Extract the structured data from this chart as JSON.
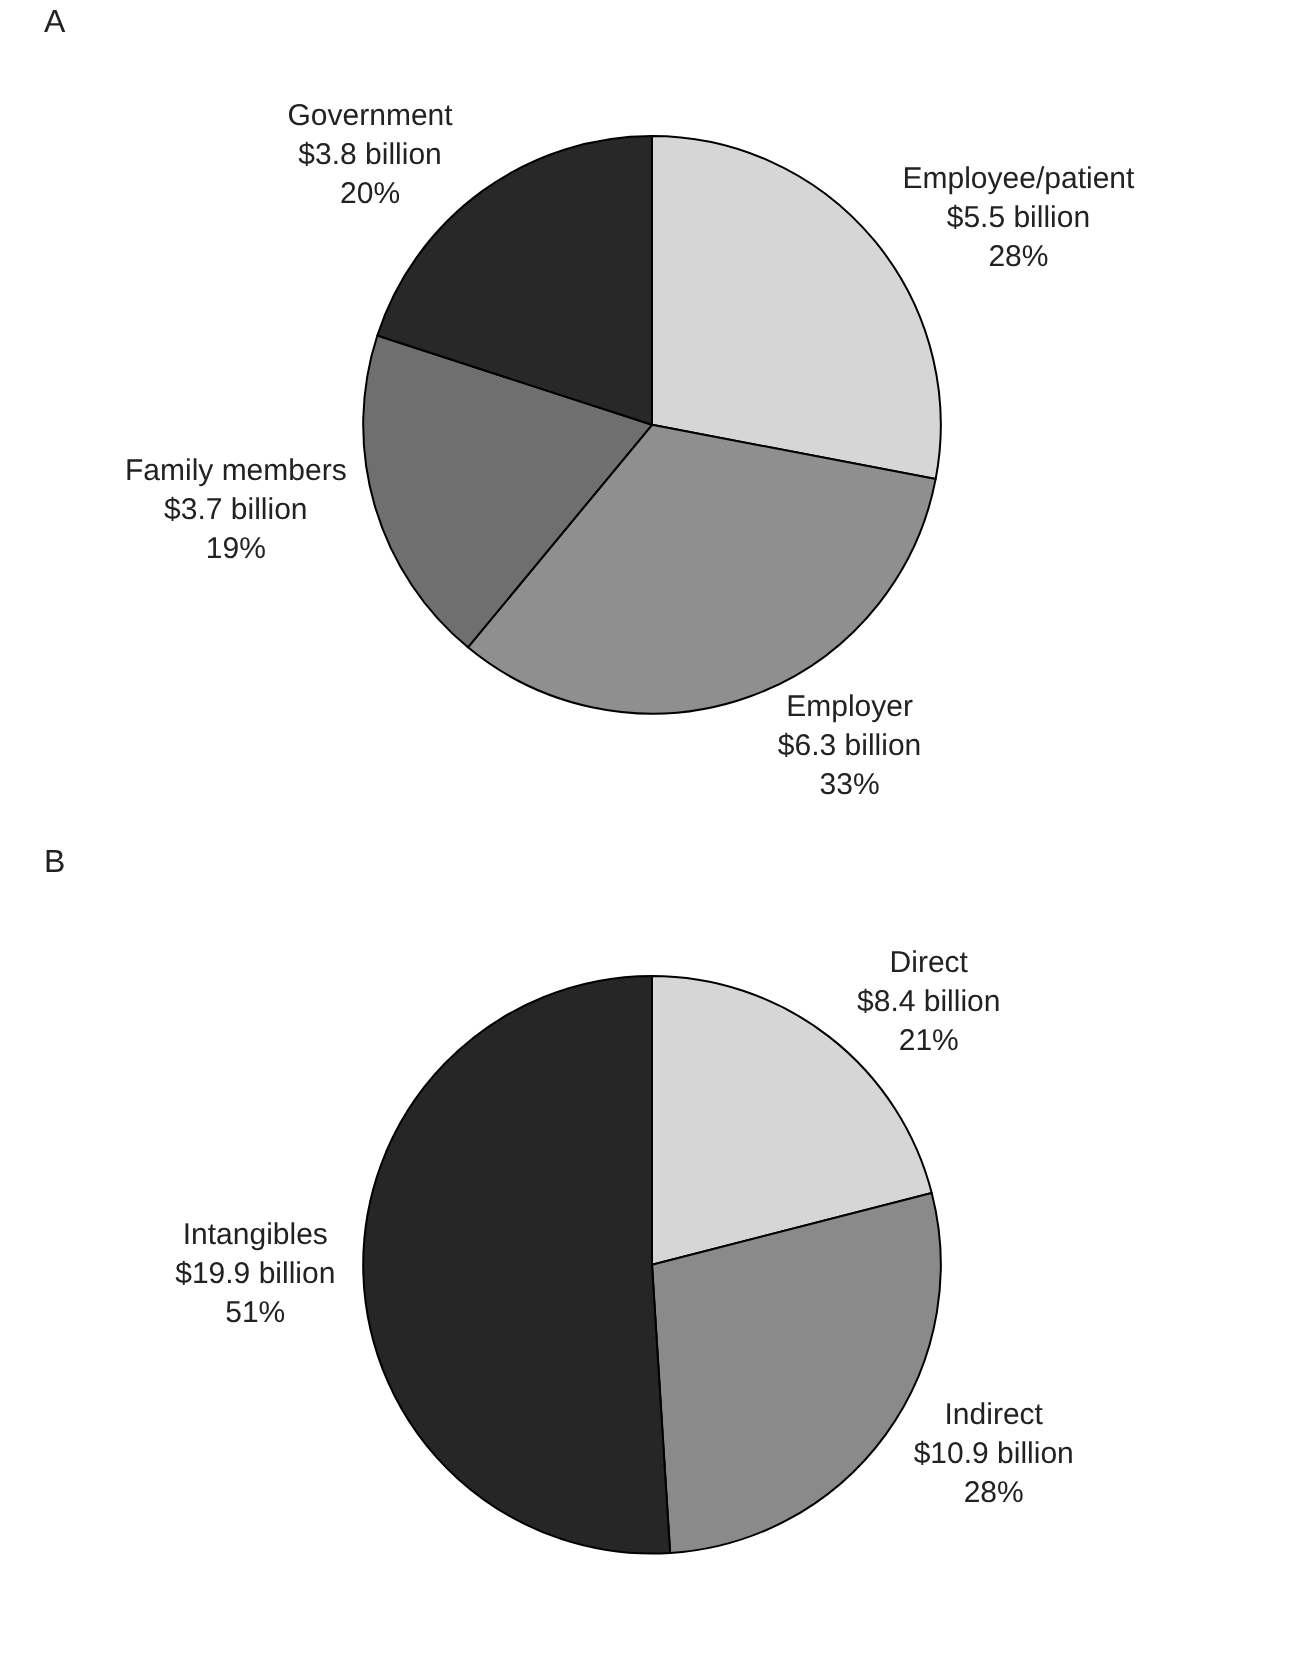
{
  "chart_data": [
    {
      "type": "pie",
      "annotations": [
        "A"
      ],
      "categories": [
        "Employee/patient",
        "Employer",
        "Family members",
        "Government"
      ],
      "values": [
        28,
        33,
        19,
        20
      ],
      "value_labels": [
        "$5.5 billion\n28%",
        "$6.3 billion\n33%",
        "$3.7 billion\n19%",
        "$3.8 billion\n20%"
      ],
      "colors": [
        "#d6d6d6",
        "#8f8f8f",
        "#6f6f6f",
        "#282828"
      ],
      "legend": false
    },
    {
      "type": "pie",
      "annotations": [
        "B"
      ],
      "categories": [
        "Direct",
        "Indirect",
        "Intangibles"
      ],
      "values": [
        21,
        28,
        51
      ],
      "value_labels": [
        "$8.4 billion\n21%",
        "$10.9 billion\n28%",
        "$19.9 billion\n51%"
      ],
      "colors": [
        "#d6d6d6",
        "#8a8a8a",
        "#262626"
      ],
      "legend": false
    }
  ]
}
